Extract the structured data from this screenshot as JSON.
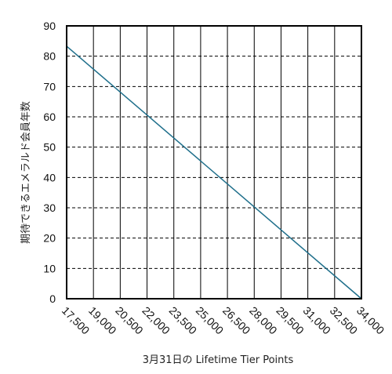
{
  "chart_data": {
    "type": "line",
    "title": "",
    "xlabel": "3月31日の Lifetime Tier Points",
    "ylabel": "期待できるエメラルド会員年数",
    "x_ticks": [
      "17,500",
      "19,000",
      "20,500",
      "22,000",
      "23,500",
      "25,000",
      "26,500",
      "28,000",
      "29,500",
      "31,000",
      "32,500",
      "34,000"
    ],
    "y_ticks": [
      "0",
      "10",
      "20",
      "30",
      "40",
      "50",
      "60",
      "70",
      "80",
      "90"
    ],
    "xlim": [
      17500,
      34000
    ],
    "ylim": [
      0,
      90
    ],
    "grid": {
      "vertical": "solid",
      "horizontal": "dashed"
    },
    "series": [
      {
        "color": "#1f6f8b",
        "x": [
          17500,
          34000
        ],
        "y": [
          83.3,
          0
        ]
      }
    ]
  }
}
